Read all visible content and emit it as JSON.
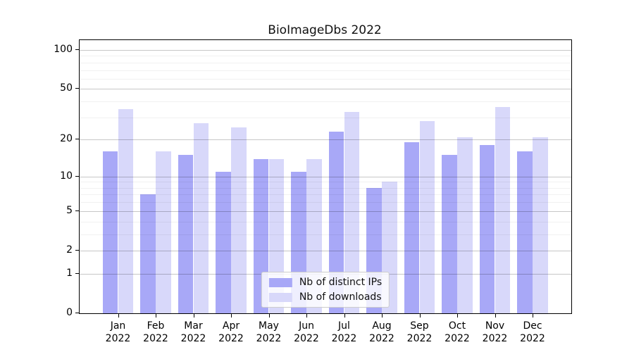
{
  "chart_data": {
    "type": "bar",
    "title": "BioImageDbs 2022",
    "categories": [
      "Jan 2022",
      "Feb 2022",
      "Mar 2022",
      "Apr 2022",
      "May 2022",
      "Jun 2022",
      "Jul 2022",
      "Aug 2022",
      "Sep 2022",
      "Oct 2022",
      "Nov 2022",
      "Dec 2022"
    ],
    "series": [
      {
        "name": "Nb of distinct IPs",
        "color": "#a8a8f7",
        "values": [
          16,
          7,
          15,
          11,
          14,
          11,
          23,
          8,
          19,
          15,
          18,
          16
        ]
      },
      {
        "name": "Nb of downloads",
        "color": "#d8d8fa",
        "values": [
          35,
          16,
          27,
          25,
          14,
          14,
          33,
          9,
          28,
          21,
          36,
          21
        ]
      }
    ],
    "xlabel": "",
    "ylabel": "",
    "yscale": "log1p",
    "ylim": [
      0,
      119
    ],
    "yticks": [
      0,
      1,
      2,
      5,
      10,
      20,
      50,
      100
    ],
    "yticks_minor": [
      3,
      4,
      6,
      7,
      8,
      9,
      30,
      40,
      60,
      70,
      80,
      90
    ],
    "grid": true,
    "legend_position": "lower center"
  }
}
